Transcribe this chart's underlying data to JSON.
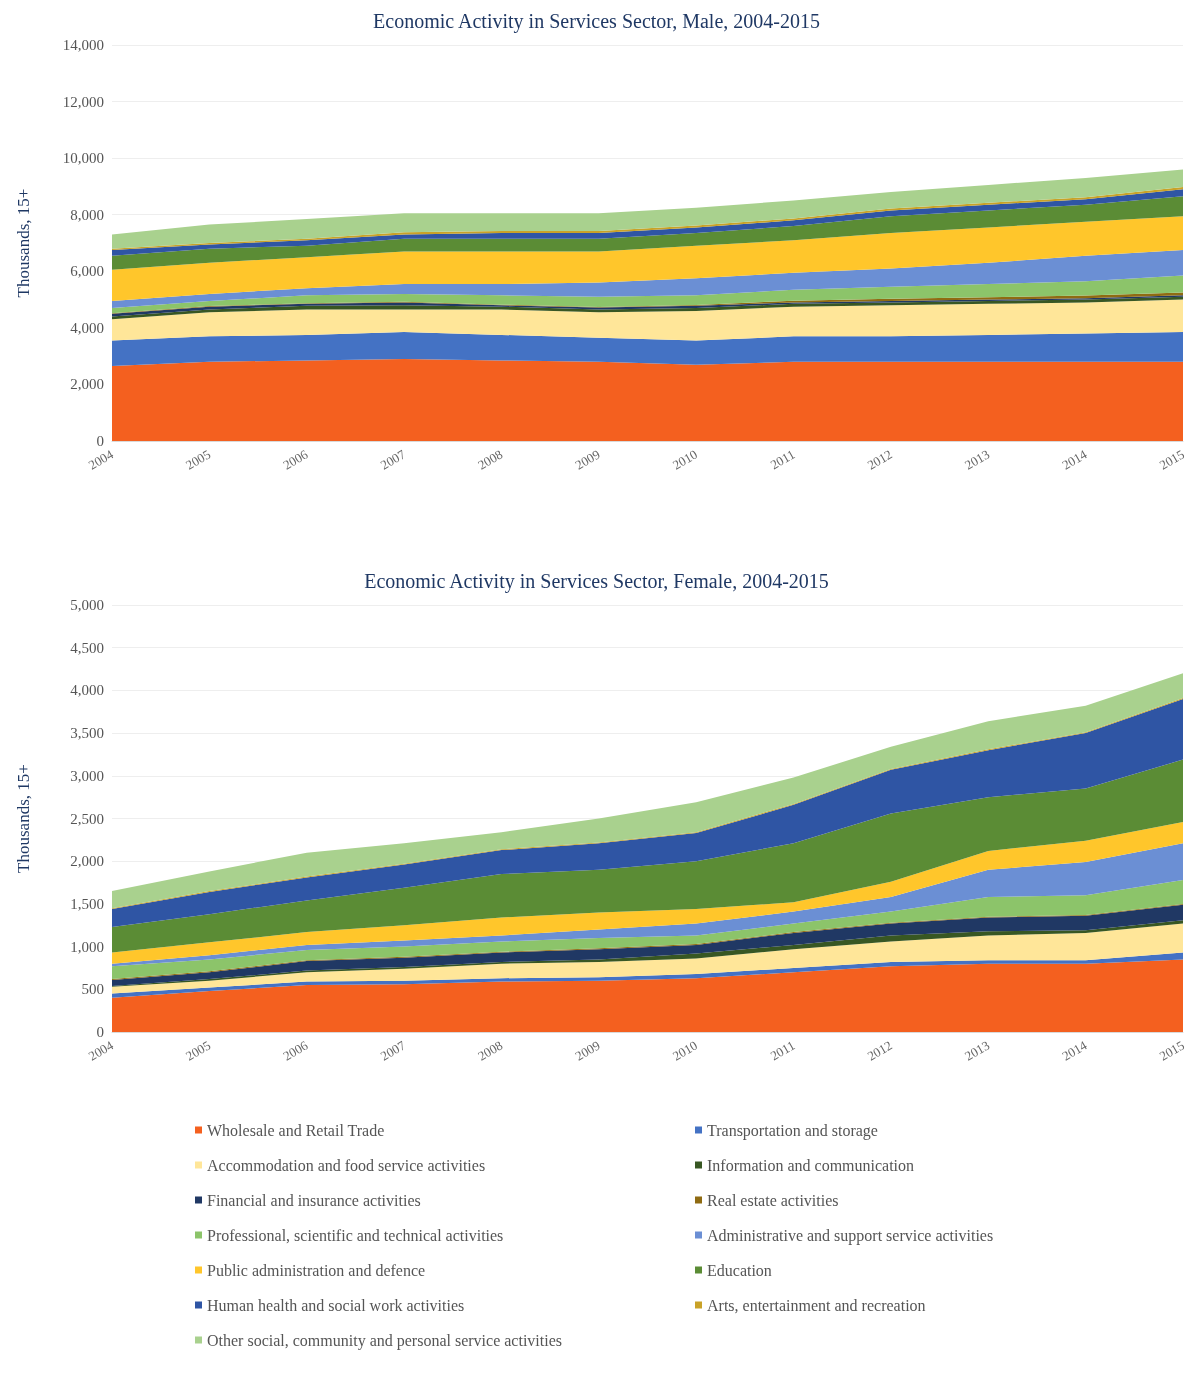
{
  "chart_data": [
    {
      "type": "area",
      "title": "Economic Activity in Services Sector, Male, 2004-2015",
      "ylabel": "Thousands, 15+",
      "categories": [
        "2004",
        "2005",
        "2006",
        "2007",
        "2008",
        "2009",
        "2010",
        "2011",
        "2012",
        "2013",
        "2014",
        "2015"
      ],
      "stacked": true,
      "grid": "y",
      "legend": false,
      "ylim": [
        0,
        14000
      ],
      "yticks": [
        {
          "value": 0,
          "label": "0"
        },
        {
          "value": 2000,
          "label": "2,000"
        },
        {
          "value": 4000,
          "label": "4,000"
        },
        {
          "value": 6000,
          "label": "6,000"
        },
        {
          "value": 8000,
          "label": "8,000"
        },
        {
          "value": 10000,
          "label": "10,000"
        },
        {
          "value": 12000,
          "label": "12,000"
        },
        {
          "value": 14000,
          "label": "14,000"
        }
      ],
      "series": [
        {
          "color": "#f4601f",
          "values": [
            2650,
            2800,
            2850,
            2900,
            2850,
            2800,
            2700,
            2800,
            2800,
            2800,
            2800,
            2800
          ]
        },
        {
          "color": "#4472c4",
          "values": [
            900,
            900,
            900,
            950,
            900,
            850,
            850,
            900,
            900,
            950,
            1000,
            1050
          ]
        },
        {
          "color": "#ffe699",
          "values": [
            750,
            850,
            900,
            800,
            900,
            900,
            1050,
            1050,
            1100,
            1100,
            1100,
            1150
          ]
        },
        {
          "color": "#385723",
          "values": [
            100,
            100,
            130,
            150,
            100,
            100,
            100,
            100,
            100,
            100,
            100,
            100
          ]
        },
        {
          "color": "#203864",
          "values": [
            100,
            100,
            70,
            100,
            50,
            70,
            80,
            50,
            50,
            50,
            50,
            50
          ]
        },
        {
          "color": "#8f6b12",
          "values": [
            20,
            20,
            20,
            20,
            20,
            20,
            30,
            60,
            80,
            80,
            90,
            100
          ]
        },
        {
          "color": "#8cc46a",
          "values": [
            180,
            180,
            280,
            280,
            330,
            360,
            340,
            390,
            420,
            470,
            510,
            600
          ]
        },
        {
          "color": "#6b8fd4",
          "values": [
            250,
            250,
            250,
            350,
            400,
            500,
            600,
            600,
            650,
            750,
            900,
            900
          ]
        },
        {
          "color": "#ffc62b",
          "values": [
            1100,
            1100,
            1100,
            1150,
            1150,
            1100,
            1150,
            1150,
            1250,
            1250,
            1200,
            1200
          ]
        },
        {
          "color": "#5b8c35",
          "values": [
            500,
            500,
            400,
            450,
            450,
            450,
            450,
            500,
            600,
            600,
            600,
            700
          ]
        },
        {
          "color": "#2f55a4",
          "values": [
            200,
            150,
            200,
            150,
            200,
            200,
            200,
            200,
            200,
            200,
            200,
            250
          ]
        },
        {
          "color": "#c9a227",
          "values": [
            50,
            50,
            50,
            80,
            70,
            70,
            70,
            70,
            70,
            70,
            70,
            80
          ]
        },
        {
          "color": "#a9d18e",
          "values": [
            500,
            650,
            700,
            670,
            630,
            630,
            630,
            630,
            580,
            630,
            680,
            620
          ]
        }
      ]
    },
    {
      "type": "area",
      "title": "Economic Activity in Services Sector, Female, 2004-2015",
      "ylabel": "Thousands, 15+",
      "categories": [
        "2004",
        "2005",
        "2006",
        "2007",
        "2008",
        "2009",
        "2010",
        "2011",
        "2012",
        "2013",
        "2014",
        "2015"
      ],
      "stacked": true,
      "grid": "y",
      "legend": "bottom",
      "ylim": [
        0,
        5000
      ],
      "yticks": [
        {
          "value": 0,
          "label": "0"
        },
        500,
        {
          "value": 1000,
          "label": "1,000"
        },
        {
          "value": 1500,
          "label": "1,500"
        },
        {
          "value": 2000,
          "label": "2,000"
        },
        {
          "value": 2500,
          "label": "2,500"
        },
        {
          "value": 3000,
          "label": "3,000"
        },
        {
          "value": 3500,
          "label": "3,500"
        },
        {
          "value": 4000,
          "label": "4,000"
        },
        {
          "value": 4500,
          "label": "4,500"
        },
        {
          "value": 5000,
          "label": "5,000"
        }
      ],
      "series": [
        {
          "name": "Wholesale and Retail Trade",
          "color": "#f4601f",
          "values": [
            400,
            480,
            550,
            560,
            590,
            600,
            630,
            700,
            770,
            800,
            800,
            850
          ]
        },
        {
          "name": "Transportation and storage",
          "color": "#4472c4",
          "values": [
            50,
            40,
            40,
            40,
            40,
            40,
            50,
            50,
            50,
            40,
            40,
            80
          ]
        },
        {
          "name": "Accommodation and food service activities",
          "color": "#ffe699",
          "values": [
            80,
            80,
            110,
            140,
            170,
            180,
            180,
            220,
            240,
            290,
            320,
            340
          ]
        },
        {
          "name": "Information and communication",
          "color": "#385723",
          "values": [
            10,
            20,
            20,
            20,
            20,
            30,
            60,
            50,
            70,
            50,
            30,
            40
          ]
        },
        {
          "name": "Financial and insurance activities",
          "color": "#203864",
          "values": [
            70,
            80,
            110,
            110,
            110,
            120,
            100,
            140,
            140,
            160,
            170,
            180
          ]
        },
        {
          "name": "Real estate activities",
          "color": "#8f6b12",
          "values": [
            10,
            10,
            10,
            10,
            10,
            10,
            10,
            10,
            10,
            10,
            10,
            10
          ]
        },
        {
          "name": "Professional, scientific and technical activities",
          "color": "#8cc46a",
          "values": [
            150,
            140,
            120,
            120,
            120,
            120,
            100,
            100,
            130,
            230,
            230,
            280
          ]
        },
        {
          "name": "Administrative and support service activities",
          "color": "#6b8fd4",
          "values": [
            30,
            50,
            60,
            70,
            70,
            100,
            140,
            140,
            170,
            320,
            390,
            430
          ]
        },
        {
          "name": "Public administration and defence",
          "color": "#ffc62b",
          "values": [
            130,
            150,
            150,
            180,
            210,
            200,
            170,
            110,
            180,
            220,
            250,
            250
          ]
        },
        {
          "name": "Education",
          "color": "#5b8c35",
          "values": [
            300,
            330,
            370,
            440,
            510,
            500,
            560,
            690,
            800,
            630,
            610,
            730
          ]
        },
        {
          "name": "Human health and social work activities",
          "color": "#2f55a4",
          "values": [
            210,
            260,
            270,
            270,
            280,
            310,
            330,
            450,
            510,
            550,
            650,
            710
          ]
        },
        {
          "name": "Arts, entertainment and recreation",
          "color": "#c9a227",
          "values": [
            10,
            10,
            10,
            10,
            10,
            10,
            10,
            10,
            10,
            10,
            10,
            10
          ]
        },
        {
          "name": "Other social, community and personal service activities",
          "color": "#a9d18e",
          "values": [
            200,
            230,
            280,
            240,
            200,
            280,
            350,
            310,
            260,
            330,
            310,
            290
          ]
        }
      ]
    }
  ]
}
